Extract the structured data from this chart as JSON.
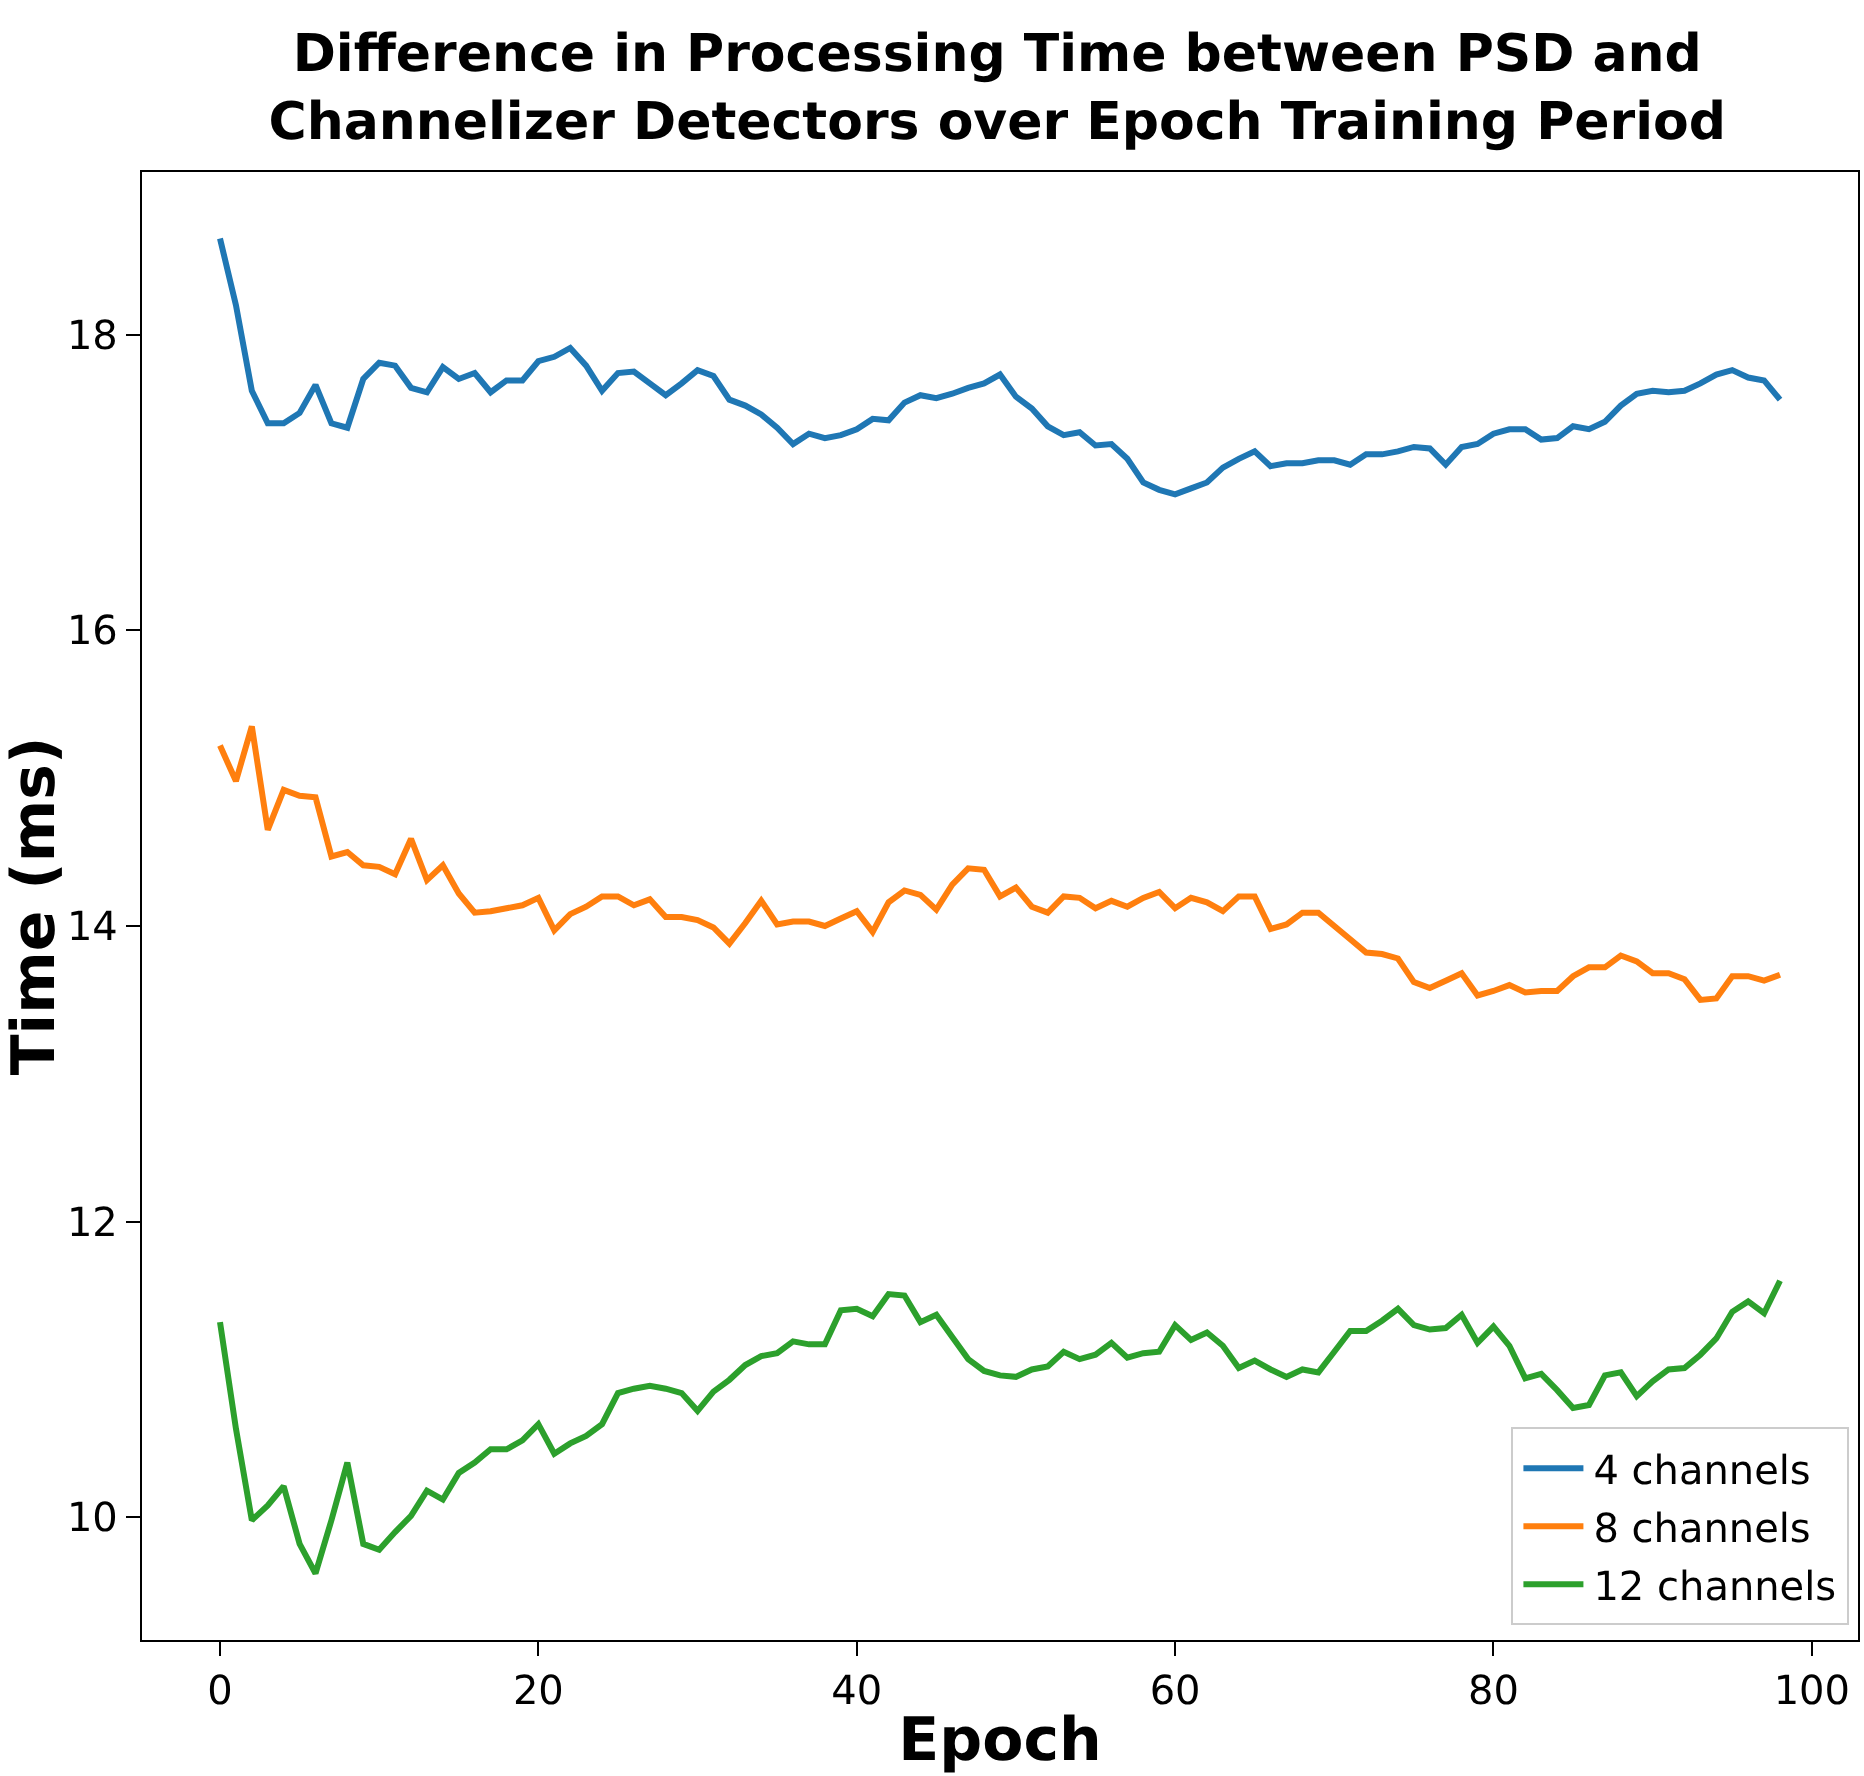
{
  "chart_data": {
    "type": "line",
    "title": "Difference in Processing Time between PSD and Channelizer Detectors over Epoch Training Period",
    "xlabel": "Epoch",
    "ylabel": "Time (ms)",
    "x": [
      0,
      1,
      2,
      3,
      4,
      5,
      6,
      7,
      8,
      9,
      10,
      11,
      12,
      13,
      14,
      15,
      16,
      17,
      18,
      19,
      20,
      21,
      22,
      23,
      24,
      25,
      26,
      27,
      28,
      29,
      30,
      31,
      32,
      33,
      34,
      35,
      36,
      37,
      38,
      39,
      40,
      41,
      42,
      43,
      44,
      45,
      46,
      47,
      48,
      49,
      50,
      51,
      52,
      53,
      54,
      55,
      56,
      57,
      58,
      59,
      60,
      61,
      62,
      63,
      64,
      65,
      66,
      67,
      68,
      69,
      70,
      71,
      72,
      73,
      74,
      75,
      76,
      77,
      78,
      79,
      80,
      81,
      82,
      83,
      84,
      85,
      86,
      87,
      88,
      89,
      90,
      91,
      92,
      93,
      94,
      95,
      96,
      97,
      98
    ],
    "series": [
      {
        "name": "4 channels",
        "color": "#1f77b4",
        "values": [
          18.65,
          18.2,
          17.62,
          17.4,
          17.4,
          17.47,
          17.66,
          17.4,
          17.37,
          17.7,
          17.81,
          17.79,
          17.64,
          17.61,
          17.78,
          17.7,
          17.74,
          17.61,
          17.69,
          17.69,
          17.82,
          17.85,
          17.91,
          17.79,
          17.62,
          17.74,
          17.75,
          17.67,
          17.59,
          17.67,
          17.76,
          17.72,
          17.56,
          17.52,
          17.46,
          17.37,
          17.26,
          17.33,
          17.3,
          17.32,
          17.36,
          17.43,
          17.42,
          17.54,
          17.59,
          17.57,
          17.6,
          17.64,
          17.67,
          17.73,
          17.58,
          17.5,
          17.38,
          17.32,
          17.34,
          17.25,
          17.26,
          17.16,
          17.0,
          16.95,
          16.92,
          16.96,
          17.0,
          17.1,
          17.16,
          17.21,
          17.11,
          17.13,
          17.13,
          17.15,
          17.15,
          17.12,
          17.19,
          17.19,
          17.21,
          17.24,
          17.23,
          17.12,
          17.24,
          17.26,
          17.33,
          17.36,
          17.36,
          17.29,
          17.3,
          17.38,
          17.36,
          17.41,
          17.52,
          17.6,
          17.62,
          17.61,
          17.62,
          17.67,
          17.73,
          17.76,
          17.71,
          17.69,
          17.56
        ]
      },
      {
        "name": "8 channels",
        "color": "#ff7f0e",
        "values": [
          15.22,
          14.98,
          15.35,
          14.65,
          14.92,
          14.88,
          14.87,
          14.47,
          14.5,
          14.41,
          14.4,
          14.35,
          14.59,
          14.31,
          14.41,
          14.22,
          14.09,
          14.1,
          14.12,
          14.14,
          14.19,
          13.97,
          14.08,
          14.13,
          14.2,
          14.2,
          14.14,
          14.18,
          14.06,
          14.06,
          14.04,
          13.99,
          13.88,
          14.02,
          14.17,
          14.01,
          14.03,
          14.03,
          14.0,
          14.05,
          14.1,
          13.96,
          14.16,
          14.24,
          14.21,
          14.11,
          14.28,
          14.39,
          14.38,
          14.2,
          14.26,
          14.13,
          14.09,
          14.2,
          14.19,
          14.12,
          14.17,
          14.13,
          14.19,
          14.23,
          14.12,
          14.19,
          14.16,
          14.1,
          14.2,
          14.2,
          13.98,
          14.01,
          14.09,
          14.09,
          14.0,
          13.91,
          13.82,
          13.81,
          13.78,
          13.62,
          13.58,
          13.63,
          13.68,
          13.53,
          13.56,
          13.6,
          13.55,
          13.56,
          13.56,
          13.66,
          13.72,
          13.72,
          13.8,
          13.76,
          13.68,
          13.68,
          13.64,
          13.5,
          13.51,
          13.66,
          13.66,
          13.63,
          13.67
        ]
      },
      {
        "name": "12 channels",
        "color": "#2ca02c",
        "values": [
          11.32,
          10.6,
          9.98,
          10.08,
          10.21,
          9.82,
          9.62,
          9.98,
          10.37,
          9.82,
          9.78,
          9.9,
          10.01,
          10.18,
          10.12,
          10.3,
          10.37,
          10.46,
          10.46,
          10.52,
          10.63,
          10.43,
          10.5,
          10.55,
          10.63,
          10.84,
          10.87,
          10.89,
          10.87,
          10.84,
          10.72,
          10.85,
          10.93,
          11.03,
          11.09,
          11.11,
          11.19,
          11.17,
          11.17,
          11.4,
          11.41,
          11.36,
          11.51,
          11.5,
          11.32,
          11.37,
          11.22,
          11.07,
          10.99,
          10.96,
          10.95,
          11.0,
          11.02,
          11.12,
          11.07,
          11.1,
          11.18,
          11.08,
          11.11,
          11.12,
          11.3,
          11.2,
          11.25,
          11.16,
          11.01,
          11.06,
          11.0,
          10.95,
          11.0,
          10.98,
          11.12,
          11.26,
          11.26,
          11.33,
          11.41,
          11.3,
          11.27,
          11.28,
          11.37,
          11.18,
          11.29,
          11.16,
          10.94,
          10.97,
          10.86,
          10.74,
          10.76,
          10.96,
          10.98,
          10.82,
          10.92,
          11.0,
          11.01,
          11.1,
          11.21,
          11.39,
          11.46,
          11.38,
          11.6
        ]
      }
    ],
    "xlim": [
      -4.9,
      102.9
    ],
    "xticks": [
      0,
      20,
      40,
      60,
      80,
      100
    ],
    "ylim": [
      9.17,
      19.1
    ],
    "yticks": [
      10,
      12,
      14,
      16,
      18
    ],
    "grid": false,
    "legend": "bottom right",
    "marker": "none",
    "line_style": "solid"
  }
}
